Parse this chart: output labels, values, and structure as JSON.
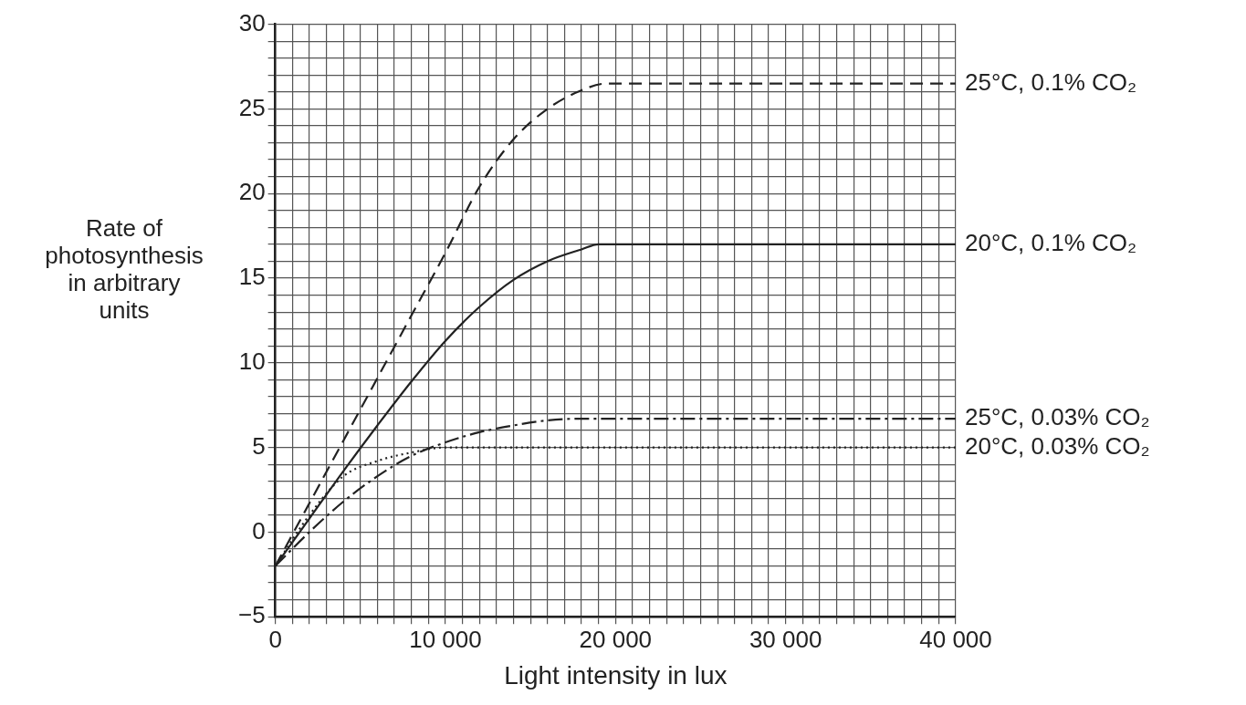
{
  "chart_data": {
    "type": "line",
    "xlabel": "Light intensity in lux",
    "ylabel": "Rate of\nphotosynthesis\nin arbitrary\nunits",
    "xlim": [
      0,
      40000
    ],
    "ylim": [
      -5,
      30
    ],
    "xticks": [
      0,
      {
        "value": 1000,
        "label": null
      },
      {
        "value": 2000,
        "label": null
      },
      {
        "value": 3000,
        "label": null
      },
      {
        "value": 4000,
        "label": null
      },
      {
        "value": 5000,
        "label": null
      },
      {
        "value": 6000,
        "label": null
      },
      {
        "value": 7000,
        "label": null
      },
      {
        "value": 8000,
        "label": null
      },
      {
        "value": 9000,
        "label": null
      },
      {
        "value": 10000,
        "label": "10 000"
      },
      {
        "value": 11000,
        "label": null
      },
      {
        "value": 12000,
        "label": null
      },
      {
        "value": 13000,
        "label": null
      },
      {
        "value": 14000,
        "label": null
      },
      {
        "value": 15000,
        "label": null
      },
      {
        "value": 16000,
        "label": null
      },
      {
        "value": 17000,
        "label": null
      },
      {
        "value": 18000,
        "label": null
      },
      {
        "value": 19000,
        "label": null
      },
      {
        "value": 20000,
        "label": "20 000"
      },
      {
        "value": 21000,
        "label": null
      },
      {
        "value": 22000,
        "label": null
      },
      {
        "value": 23000,
        "label": null
      },
      {
        "value": 24000,
        "label": null
      },
      {
        "value": 25000,
        "label": null
      },
      {
        "value": 26000,
        "label": null
      },
      {
        "value": 27000,
        "label": null
      },
      {
        "value": 28000,
        "label": null
      },
      {
        "value": 29000,
        "label": null
      },
      {
        "value": 30000,
        "label": "30 000"
      },
      {
        "value": 31000,
        "label": null
      },
      {
        "value": 32000,
        "label": null
      },
      {
        "value": 33000,
        "label": null
      },
      {
        "value": 34000,
        "label": null
      },
      {
        "value": 35000,
        "label": null
      },
      {
        "value": 36000,
        "label": null
      },
      {
        "value": 37000,
        "label": null
      },
      {
        "value": 38000,
        "label": null
      },
      {
        "value": 39000,
        "label": null
      },
      {
        "value": 40000,
        "label": "40 000"
      }
    ],
    "yticks": [
      {
        "value": -5,
        "label": "−5"
      },
      {
        "value": -4,
        "label": null
      },
      {
        "value": -3,
        "label": null
      },
      {
        "value": -2,
        "label": null
      },
      {
        "value": -1,
        "label": null
      },
      0,
      {
        "value": 1,
        "label": null
      },
      {
        "value": 2,
        "label": null
      },
      {
        "value": 3,
        "label": null
      },
      {
        "value": 4,
        "label": null
      },
      5,
      {
        "value": 6,
        "label": null
      },
      {
        "value": 7,
        "label": null
      },
      {
        "value": 8,
        "label": null
      },
      {
        "value": 9,
        "label": null
      },
      10,
      {
        "value": 11,
        "label": null
      },
      {
        "value": 12,
        "label": null
      },
      {
        "value": 13,
        "label": null
      },
      {
        "value": 14,
        "label": null
      },
      15,
      {
        "value": 16,
        "label": null
      },
      {
        "value": 17,
        "label": null
      },
      {
        "value": 18,
        "label": null
      },
      {
        "value": 19,
        "label": null
      },
      20,
      {
        "value": 21,
        "label": null
      },
      {
        "value": 22,
        "label": null
      },
      {
        "value": 23,
        "label": null
      },
      {
        "value": 24,
        "label": null
      },
      25,
      {
        "value": 26,
        "label": null
      },
      {
        "value": 27,
        "label": null
      },
      {
        "value": 28,
        "label": null
      },
      {
        "value": 29,
        "label": null
      },
      30
    ],
    "grid": true,
    "legend": false,
    "marker": "none",
    "series": [
      {
        "name": "25°C, 0.1% CO₂",
        "color": "#222222",
        "line_style": "dashed",
        "x": [
          0,
          2000,
          4000,
          6000,
          8000,
          10000,
          12000,
          14000,
          16000,
          18000,
          19500,
          40000
        ],
        "values": [
          -2,
          1.7,
          5.4,
          9.1,
          12.8,
          16.5,
          20.4,
          23.2,
          25,
          26.1,
          26.5,
          26.5
        ]
      },
      {
        "name": "20°C, 0.1% CO₂",
        "color": "#222222",
        "line_style": "solid",
        "x": [
          0,
          2000,
          4000,
          6000,
          8000,
          10000,
          12000,
          14000,
          16000,
          18000,
          19000,
          40000
        ],
        "values": [
          -2,
          0.8,
          3.6,
          6.3,
          8.9,
          11.3,
          13.3,
          14.9,
          16,
          16.7,
          17,
          17
        ]
      },
      {
        "name": "25°C, 0.03% CO₂",
        "color": "#222222",
        "line_style": "dashdot",
        "x": [
          0,
          2000,
          4000,
          6000,
          8000,
          10000,
          12000,
          14000,
          16000,
          18000,
          40000
        ],
        "values": [
          -2,
          0,
          1.8,
          3.3,
          4.5,
          5.3,
          5.9,
          6.3,
          6.6,
          6.7,
          6.7
        ]
      },
      {
        "name": "20°C, 0.03% CO₂",
        "color": "#222222",
        "line_style": "dotted",
        "x": [
          0,
          2000,
          4000,
          6000,
          8000,
          10000,
          40000
        ],
        "values": [
          -2,
          1,
          3.3,
          4.2,
          4.7,
          5,
          5
        ]
      }
    ]
  }
}
